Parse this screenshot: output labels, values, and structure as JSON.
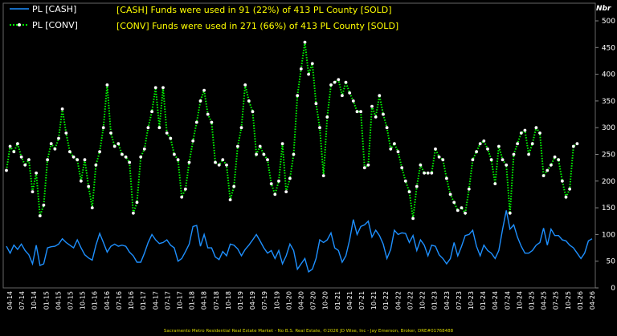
{
  "chart_data": {
    "type": "line",
    "ylabel": "Nbr",
    "ylim": [
      0,
      500
    ],
    "yticks": [
      0,
      50,
      100,
      150,
      200,
      250,
      300,
      350,
      400,
      450,
      500
    ],
    "grid": false,
    "legend_position": "top-left",
    "annotations": [
      "[CASH] Funds were used in 91 (22%) of 413 PL County [SOLD]",
      "[CONV] Funds were used in 271 (66%) of 413 PL County [SOLD]"
    ],
    "x_tick_labels": [
      "04-14",
      "07-14",
      "10-14",
      "01-15",
      "04-15",
      "07-15",
      "10-15",
      "01-16",
      "04-16",
      "07-16",
      "10-16",
      "01-17",
      "04-17",
      "07-17",
      "10-17",
      "01-18",
      "04-18",
      "07-18",
      "10-18",
      "01-19",
      "04-19",
      "07-19",
      "10-19",
      "01-20",
      "04-20",
      "07-20",
      "10-20",
      "01-21",
      "04-21",
      "07-21",
      "10-21",
      "01-22",
      "04-22",
      "07-22",
      "10-22",
      "01-23",
      "04-23",
      "07-23",
      "10-23",
      "01-24",
      "04-24",
      "07-24",
      "10-24",
      "01-25",
      "04-25",
      "07-25",
      "10-25",
      "01-26",
      "04-26"
    ],
    "series": [
      {
        "name": "PL [CASH]",
        "color": "#1e90ff",
        "style": "solid",
        "values": [
          78,
          65,
          80,
          72,
          82,
          70,
          62,
          45,
          80,
          42,
          45,
          75,
          77,
          78,
          82,
          92,
          85,
          80,
          75,
          90,
          75,
          62,
          56,
          52,
          80,
          102,
          85,
          67,
          78,
          82,
          78,
          80,
          78,
          67,
          60,
          48,
          48,
          65,
          85,
          100,
          90,
          83,
          85,
          90,
          80,
          75,
          50,
          55,
          68,
          82,
          115,
          117,
          78,
          100,
          75,
          75,
          58,
          53,
          68,
          60,
          82,
          80,
          73,
          60,
          72,
          80,
          90,
          100,
          88,
          75,
          65,
          70,
          55,
          70,
          45,
          60,
          82,
          70,
          35,
          45,
          55,
          30,
          35,
          55,
          90,
          85,
          90,
          103,
          75,
          70,
          48,
          60,
          90,
          128,
          100,
          115,
          118,
          125,
          95,
          108,
          98,
          82,
          55,
          72,
          108,
          100,
          103,
          102,
          85,
          98,
          70,
          90,
          80,
          60,
          80,
          78,
          62,
          55,
          45,
          55,
          85,
          60,
          78,
          98,
          100,
          108,
          78,
          60,
          80,
          70,
          65,
          55,
          70,
          110,
          145,
          110,
          118,
          95,
          78,
          65,
          65,
          70,
          80,
          85,
          112,
          80,
          110,
          98,
          98,
          90,
          88,
          80,
          75,
          65,
          55,
          65,
          88,
          92
        ]
      },
      {
        "name": "PL [CONV]",
        "color": "#00ff00",
        "style": "dotted",
        "values": [
          220,
          265,
          255,
          270,
          245,
          230,
          240,
          180,
          215,
          135,
          155,
          240,
          270,
          260,
          280,
          335,
          290,
          255,
          245,
          240,
          200,
          240,
          190,
          150,
          230,
          255,
          300,
          380,
          290,
          265,
          270,
          250,
          245,
          235,
          140,
          160,
          245,
          260,
          300,
          330,
          375,
          300,
          375,
          290,
          280,
          250,
          240,
          170,
          185,
          235,
          275,
          310,
          350,
          370,
          325,
          310,
          235,
          230,
          240,
          230,
          165,
          190,
          265,
          300,
          380,
          350,
          330,
          250,
          265,
          250,
          240,
          195,
          175,
          200,
          270,
          180,
          205,
          250,
          360,
          410,
          460,
          400,
          420,
          345,
          300,
          210,
          320,
          380,
          385,
          390,
          360,
          385,
          365,
          350,
          330,
          330,
          225,
          230,
          340,
          320,
          360,
          325,
          300,
          260,
          270,
          255,
          225,
          200,
          180,
          130,
          190,
          230,
          215,
          215,
          215,
          260,
          245,
          240,
          205,
          175,
          160,
          145,
          150,
          140,
          185,
          240,
          255,
          270,
          275,
          260,
          240,
          195,
          265,
          240,
          230,
          140,
          250,
          270,
          290,
          295,
          250,
          270,
          300,
          290,
          210,
          220,
          230,
          245,
          240,
          200,
          170,
          185,
          265,
          270
        ]
      }
    ]
  },
  "footer": "Sacramento Metro Residential Real Estate Market - No B.S. Real Estate, ©2026 JD Wise, Inc - Jay Emerson, Broker, DRE#01768488"
}
